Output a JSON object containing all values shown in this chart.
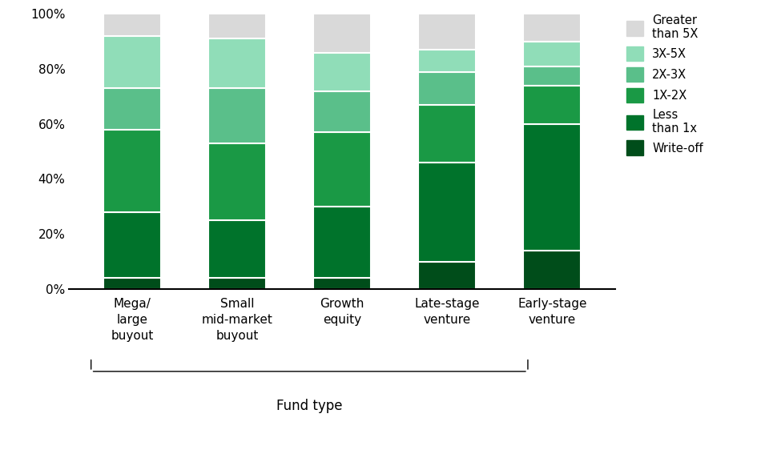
{
  "categories": [
    "Mega/\nlarge\nbuyout",
    "Small\nmid-market\nbuyout",
    "Growth\nequity",
    "Late-stage\nventure",
    "Early-stage\nventure"
  ],
  "segments": [
    {
      "label": "Write-off",
      "values": [
        4,
        4,
        4,
        10,
        14
      ],
      "color": "#004d1a"
    },
    {
      "label": "Less than 1x",
      "values": [
        24,
        21,
        26,
        36,
        46
      ],
      "color": "#00732b"
    },
    {
      "label": "1X-2X",
      "values": [
        30,
        28,
        27,
        21,
        14
      ],
      "color": "#1a9945"
    },
    {
      "label": "2X-3X",
      "values": [
        15,
        20,
        15,
        12,
        7
      ],
      "color": "#5abf8a"
    },
    {
      "label": "3X-5X",
      "values": [
        19,
        18,
        14,
        8,
        9
      ],
      "color": "#90ddb8"
    },
    {
      "label": "Greater than 5X",
      "values": [
        8,
        9,
        14,
        13,
        10
      ],
      "color": "#d9d9d9"
    }
  ],
  "legend_labels": [
    "Greater\nthan 5X",
    "3X-5X",
    "2X-3X",
    "1X-2X",
    "Less\nthan 1x",
    "Write-off"
  ],
  "legend_colors": [
    "#d9d9d9",
    "#90ddb8",
    "#5abf8a",
    "#1a9945",
    "#00732b",
    "#004d1a"
  ],
  "xlabel": "Fund type",
  "ylim": [
    0,
    100
  ],
  "yticks": [
    0,
    20,
    40,
    60,
    80,
    100
  ],
  "yticklabels": [
    "0%",
    "20%",
    "40%",
    "60%",
    "80%",
    "100%"
  ],
  "background_color": "#ffffff",
  "bar_width": 0.55,
  "bar_edge_color": "#ffffff",
  "bar_linewidth": 1.5
}
